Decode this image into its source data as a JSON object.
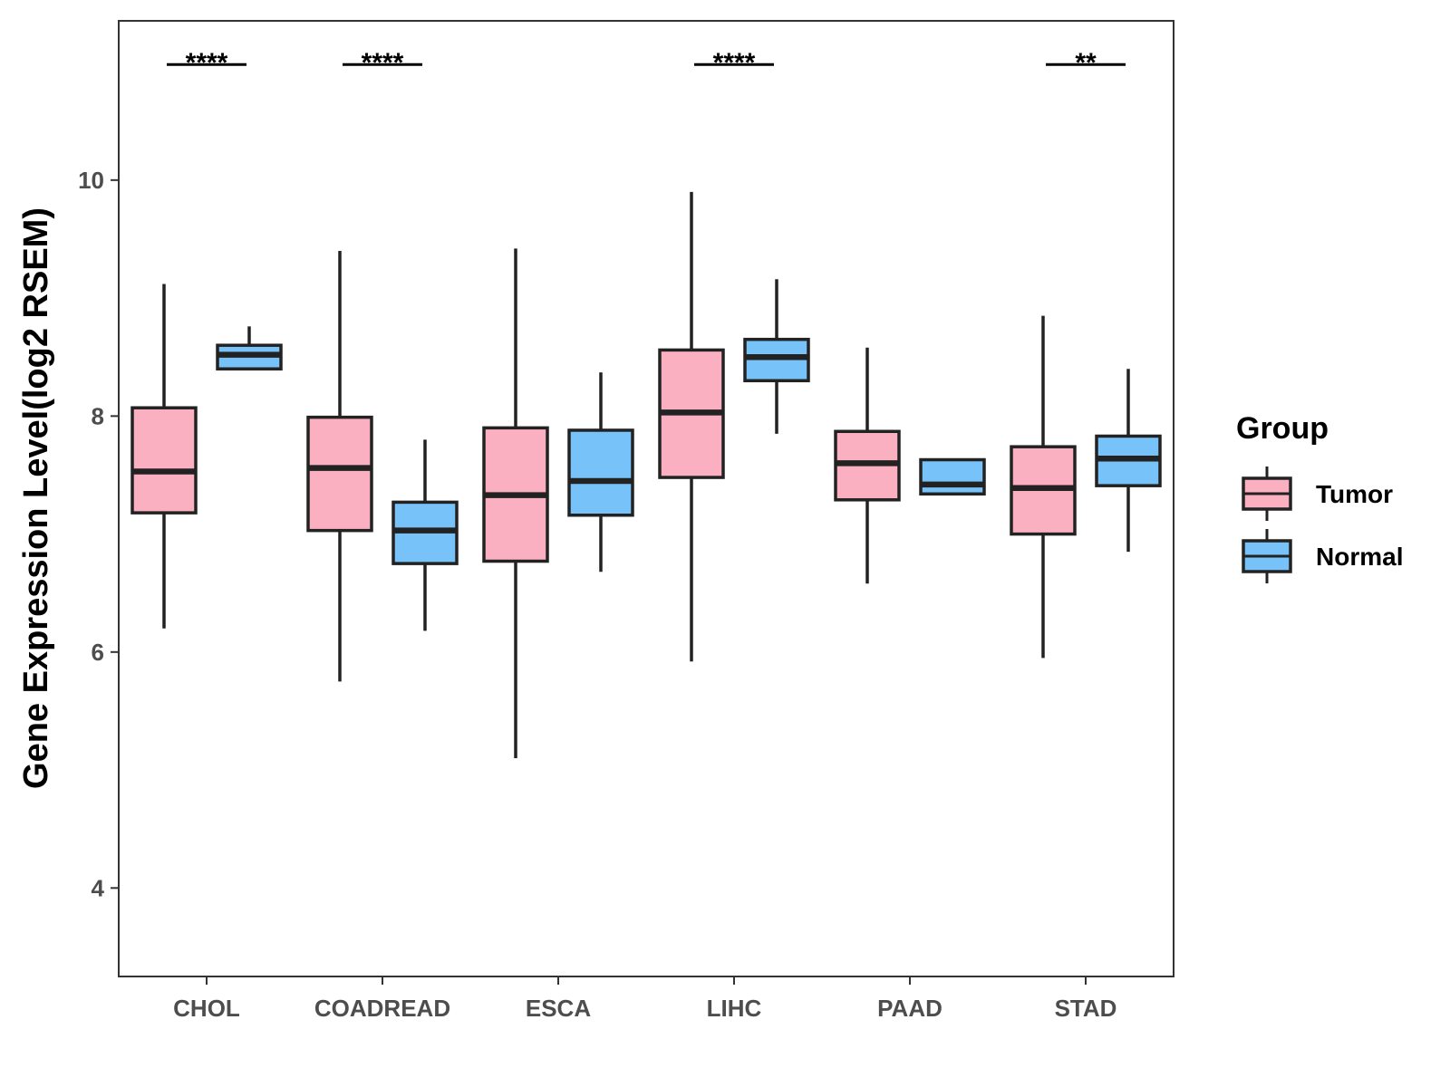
{
  "chart_data": {
    "type": "boxplot",
    "title": "",
    "xlabel": "",
    "ylabel": "Gene Expression Level(log2 RSEM)",
    "ylim": [
      3.25,
      11.35
    ],
    "yticks": [
      4,
      6,
      8,
      10
    ],
    "ytick_labels": [
      "4",
      "6",
      "8",
      "10"
    ],
    "grid": false,
    "categories": [
      "CHOL",
      "COADREAD",
      "ESCA",
      "LIHC",
      "PAAD",
      "STAD"
    ],
    "series": [
      {
        "name": "Tumor",
        "color": "#FBB0C2",
        "boxes": [
          {
            "min": 6.2,
            "q1": 7.18,
            "median": 7.53,
            "q3": 8.07,
            "max": 9.12
          },
          {
            "min": 5.75,
            "q1": 7.03,
            "median": 7.56,
            "q3": 7.99,
            "max": 9.4
          },
          {
            "min": 5.1,
            "q1": 6.77,
            "median": 7.33,
            "q3": 7.9,
            "max": 9.42
          },
          {
            "min": 5.92,
            "q1": 7.48,
            "median": 8.03,
            "q3": 8.56,
            "max": 9.9
          },
          {
            "min": 6.58,
            "q1": 7.29,
            "median": 7.6,
            "q3": 7.87,
            "max": 8.58
          },
          {
            "min": 5.95,
            "q1": 7.0,
            "median": 7.39,
            "q3": 7.74,
            "max": 8.85
          }
        ]
      },
      {
        "name": "Normal",
        "color": "#77C2F8",
        "boxes": [
          {
            "min": 8.4,
            "q1": 8.4,
            "median": 8.52,
            "q3": 8.6,
            "max": 8.76
          },
          {
            "min": 6.18,
            "q1": 6.75,
            "median": 7.03,
            "q3": 7.27,
            "max": 7.8
          },
          {
            "min": 6.68,
            "q1": 7.16,
            "median": 7.45,
            "q3": 7.88,
            "max": 8.37
          },
          {
            "min": 7.85,
            "q1": 8.3,
            "median": 8.5,
            "q3": 8.65,
            "max": 9.16
          },
          {
            "min": 7.34,
            "q1": 7.34,
            "median": 7.42,
            "q3": 7.63,
            "max": 7.63
          },
          {
            "min": 6.85,
            "q1": 7.41,
            "median": 7.64,
            "q3": 7.83,
            "max": 8.4
          }
        ]
      }
    ],
    "significance": [
      {
        "category": "CHOL",
        "label": "****",
        "y": 10.98
      },
      {
        "category": "COADREAD",
        "label": "****",
        "y": 10.98
      },
      {
        "category": "LIHC",
        "label": "****",
        "y": 10.98
      },
      {
        "category": "STAD",
        "label": "**",
        "y": 10.98
      }
    ],
    "legend": {
      "title": "Group",
      "position": "right",
      "entries": [
        "Tumor",
        "Normal"
      ]
    }
  }
}
